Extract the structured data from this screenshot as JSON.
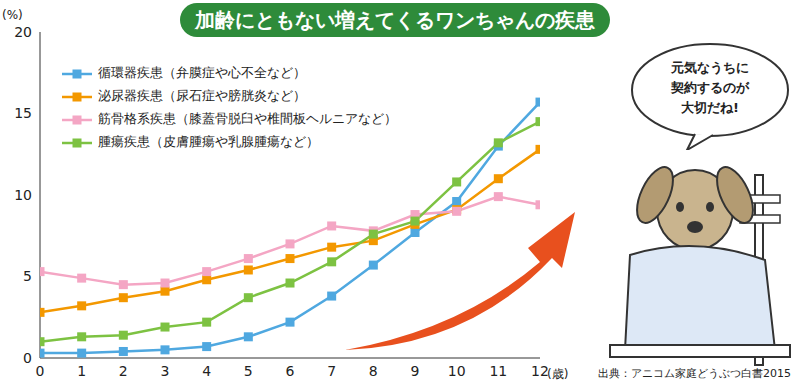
{
  "chart_data": {
    "type": "line",
    "title": "加齢にともない増えてくるワンちゃんの疾患",
    "x_label": "(歳)",
    "y_label": "(%)",
    "x": [
      0,
      1,
      2,
      3,
      4,
      5,
      6,
      7,
      8,
      9,
      10,
      11,
      12
    ],
    "xlim": [
      0,
      12
    ],
    "xticks": [
      0,
      1,
      2,
      3,
      4,
      5,
      6,
      7,
      8,
      9,
      10,
      11,
      12
    ],
    "ylim": [
      0,
      20
    ],
    "yticks": [
      0,
      5,
      10,
      15,
      20
    ],
    "grid": false,
    "legend": "upper left",
    "marker": "square",
    "series": [
      {
        "name": "循環器疾患（弁膜症や心不全など）",
        "color": "#4fa8e0",
        "values": [
          0.3,
          0.3,
          0.4,
          0.5,
          0.7,
          1.3,
          2.2,
          3.8,
          5.7,
          7.7,
          9.6,
          13.0,
          15.7
        ]
      },
      {
        "name": "泌尿器疾患（尿石症や膀胱炎など）",
        "color": "#f39800",
        "values": [
          2.8,
          3.2,
          3.7,
          4.1,
          4.8,
          5.4,
          6.1,
          6.8,
          7.2,
          8.2,
          9.1,
          11.0,
          12.8
        ]
      },
      {
        "name": "筋骨格系疾患（膝蓋骨脱臼や椎間板ヘルニアなど）",
        "color": "#f4a6c4",
        "values": [
          5.3,
          4.9,
          4.5,
          4.6,
          5.3,
          6.1,
          7.0,
          8.1,
          7.8,
          8.8,
          9.0,
          9.9,
          9.4
        ]
      },
      {
        "name": "腫瘍疾患（皮膚腫瘍や乳腺腫瘍など）",
        "color": "#7dc242",
        "values": [
          1.0,
          1.3,
          1.4,
          1.9,
          2.2,
          3.7,
          4.6,
          5.9,
          7.6,
          8.4,
          10.8,
          13.2,
          14.5
        ]
      }
    ],
    "annotations": [
      "元気なうちに\n契約するのが\n大切だね!"
    ],
    "source": "出典：アニコム家庭どうぶつ白書2015"
  }
}
